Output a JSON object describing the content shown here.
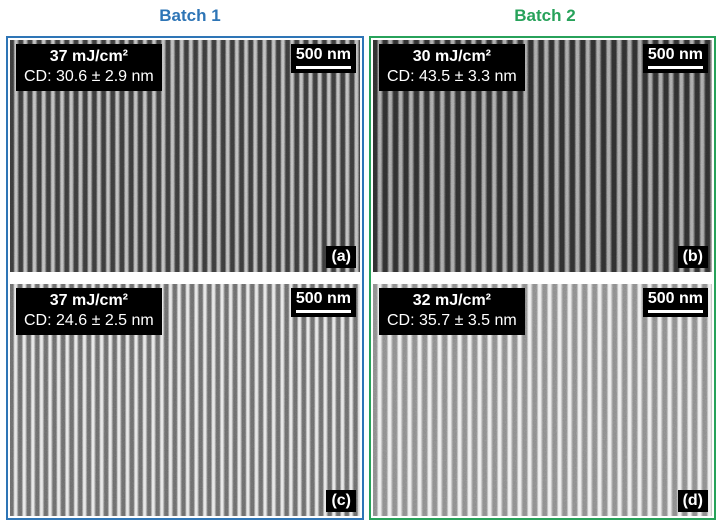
{
  "batches": [
    {
      "title": "Batch 1",
      "panels": [
        {
          "dose": "37 mJ/cm²",
          "cd": "CD: 30.6 ± 2.9 nm",
          "scale_bar": "500 nm",
          "label": "(a)"
        },
        {
          "dose": "37 mJ/cm²",
          "cd": "CD: 24.6 ± 2.5 nm",
          "scale_bar": "500 nm",
          "label": "(c)"
        }
      ]
    },
    {
      "title": "Batch 2",
      "panels": [
        {
          "dose": "30 mJ/cm²",
          "cd": "CD: 43.5 ± 3.3 nm",
          "scale_bar": "500 nm",
          "label": "(b)"
        },
        {
          "dose": "32 mJ/cm²",
          "cd": "CD: 35.7 ± 3.5 nm",
          "scale_bar": "500 nm",
          "label": "(d)"
        }
      ]
    }
  ]
}
